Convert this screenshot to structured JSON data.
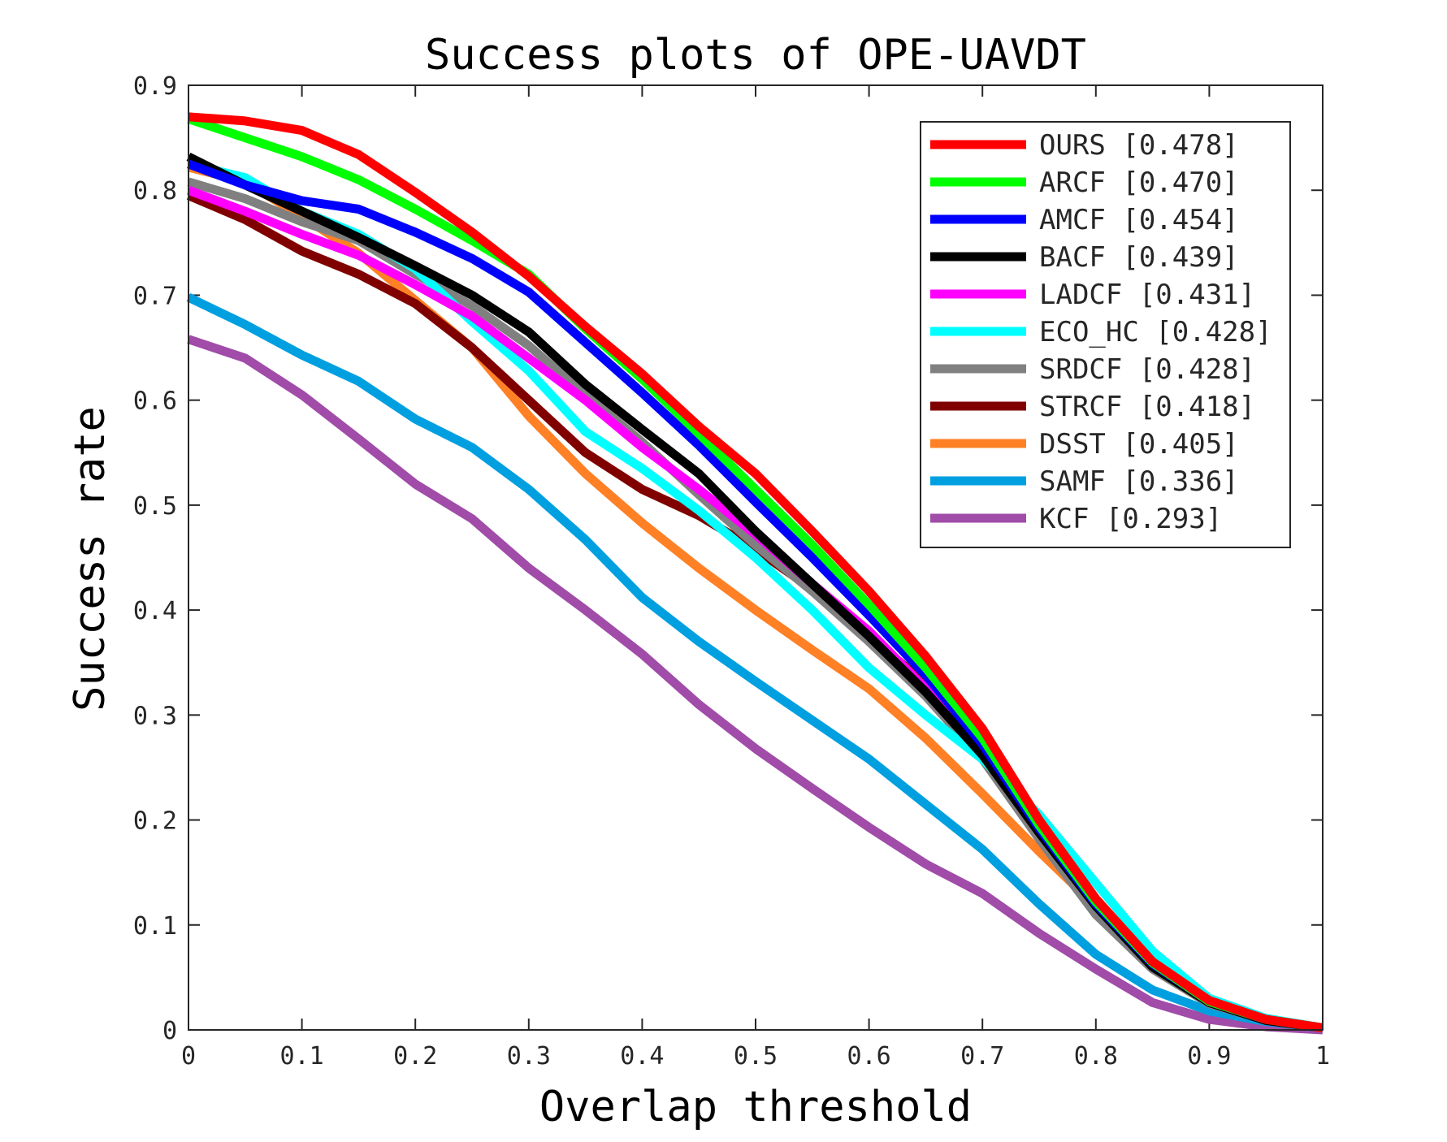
{
  "chart_data": {
    "type": "line",
    "title": "Success plots of OPE-UAVDT",
    "xlabel": "Overlap threshold",
    "ylabel": "Success rate",
    "xlim": [
      0,
      1
    ],
    "ylim": [
      0,
      0.9
    ],
    "x_ticks": [
      "0",
      "0.1",
      "0.2",
      "0.3",
      "0.4",
      "0.5",
      "0.6",
      "0.7",
      "0.8",
      "0.9",
      "1"
    ],
    "y_ticks": [
      "0",
      "0.1",
      "0.2",
      "0.3",
      "0.4",
      "0.5",
      "0.6",
      "0.7",
      "0.8",
      "0.9"
    ],
    "grid": false,
    "legend_position": "top-right",
    "x": [
      0,
      0.05,
      0.1,
      0.15,
      0.2,
      0.25,
      0.3,
      0.35,
      0.4,
      0.45,
      0.5,
      0.55,
      0.6,
      0.65,
      0.7,
      0.75,
      0.8,
      0.85,
      0.9,
      0.95,
      1
    ],
    "series": [
      {
        "name": "OURS [0.478]",
        "color": "#ff0000",
        "values": [
          0.87,
          0.866,
          0.857,
          0.834,
          0.798,
          0.76,
          0.718,
          0.67,
          0.625,
          0.575,
          0.53,
          0.475,
          0.418,
          0.356,
          0.287,
          0.2,
          0.125,
          0.065,
          0.028,
          0.01,
          0.002
        ]
      },
      {
        "name": "ARCF [0.470]",
        "color": "#00ff00",
        "values": [
          0.868,
          0.85,
          0.832,
          0.81,
          0.782,
          0.752,
          0.72,
          0.668,
          0.62,
          0.568,
          0.515,
          0.462,
          0.405,
          0.345,
          0.278,
          0.195,
          0.122,
          0.064,
          0.027,
          0.01,
          0.002
        ]
      },
      {
        "name": "AMCF [0.454]",
        "color": "#0000ff",
        "values": [
          0.825,
          0.805,
          0.79,
          0.782,
          0.76,
          0.735,
          0.703,
          0.655,
          0.607,
          0.557,
          0.503,
          0.45,
          0.395,
          0.338,
          0.272,
          0.192,
          0.12,
          0.063,
          0.027,
          0.01,
          0.002
        ]
      },
      {
        "name": "BACF [0.439]",
        "color": "#000000",
        "values": [
          0.832,
          0.805,
          0.78,
          0.755,
          0.728,
          0.7,
          0.665,
          0.615,
          0.572,
          0.53,
          0.475,
          0.425,
          0.375,
          0.322,
          0.262,
          0.188,
          0.118,
          0.06,
          0.026,
          0.009,
          0.002
        ]
      },
      {
        "name": "LADCF [0.431]",
        "color": "#ff00ff",
        "values": [
          0.8,
          0.78,
          0.758,
          0.738,
          0.71,
          0.68,
          0.64,
          0.6,
          0.555,
          0.515,
          0.472,
          0.425,
          0.38,
          0.325,
          0.265,
          0.19,
          0.12,
          0.062,
          0.026,
          0.009,
          0.002
        ]
      },
      {
        "name": "ECO_HC [0.428]",
        "color": "#00ffff",
        "values": [
          0.825,
          0.812,
          0.78,
          0.758,
          0.725,
          0.675,
          0.628,
          0.57,
          0.535,
          0.495,
          0.45,
          0.4,
          0.345,
          0.3,
          0.258,
          0.205,
          0.14,
          0.075,
          0.03,
          0.011,
          0.002
        ]
      },
      {
        "name": "SRDCF [0.428]",
        "color": "#808080",
        "values": [
          0.808,
          0.792,
          0.77,
          0.752,
          0.72,
          0.69,
          0.652,
          0.605,
          0.56,
          0.51,
          0.462,
          0.418,
          0.37,
          0.318,
          0.258,
          0.182,
          0.11,
          0.058,
          0.025,
          0.009,
          0.002
        ]
      },
      {
        "name": "STRCF [0.418]",
        "color": "#800000",
        "values": [
          0.795,
          0.772,
          0.742,
          0.72,
          0.692,
          0.65,
          0.6,
          0.55,
          0.515,
          0.49,
          0.458,
          0.42,
          0.375,
          0.33,
          0.27,
          0.19,
          0.12,
          0.06,
          0.026,
          0.009,
          0.002
        ]
      },
      {
        "name": "DSST [0.405]",
        "color": "#ff8025",
        "values": [
          0.822,
          0.808,
          0.775,
          0.74,
          0.695,
          0.65,
          0.585,
          0.53,
          0.483,
          0.44,
          0.4,
          0.362,
          0.325,
          0.278,
          0.225,
          0.17,
          0.118,
          0.066,
          0.028,
          0.01,
          0.002
        ]
      },
      {
        "name": "SAMF [0.336]",
        "color": "#00a0e0",
        "values": [
          0.698,
          0.672,
          0.643,
          0.618,
          0.582,
          0.555,
          0.515,
          0.467,
          0.412,
          0.37,
          0.332,
          0.295,
          0.258,
          0.215,
          0.172,
          0.12,
          0.072,
          0.038,
          0.018,
          0.008,
          0.002
        ]
      },
      {
        "name": "KCF [0.293]",
        "color": "#a04ca8",
        "values": [
          0.658,
          0.64,
          0.605,
          0.563,
          0.52,
          0.487,
          0.44,
          0.4,
          0.358,
          0.31,
          0.268,
          0.23,
          0.193,
          0.158,
          0.13,
          0.092,
          0.058,
          0.026,
          0.01,
          0.003,
          0.0
        ]
      }
    ]
  }
}
